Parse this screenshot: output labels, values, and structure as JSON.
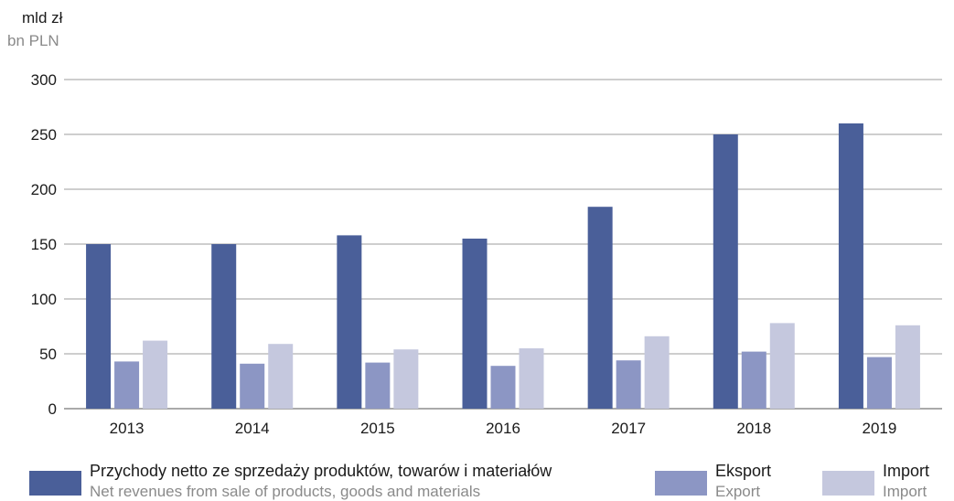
{
  "unit": {
    "pl": "mld zł",
    "en": "bn PLN"
  },
  "colors": {
    "grid": "#9e9e9e",
    "axis": "#555555"
  },
  "legend": [
    {
      "pl": "Przychody netto ze sprzedaży produktów, towarów i materiałów",
      "en": "Net revenues from sale of products, goods and materials",
      "color": "#4a5f99"
    },
    {
      "pl": "Eksport",
      "en": "Export",
      "color": "#8c96c4"
    },
    {
      "pl": "Import",
      "en": "Import",
      "color": "#c5c8de"
    }
  ],
  "chart_data": {
    "type": "bar",
    "categories": [
      "2013",
      "2014",
      "2015",
      "2016",
      "2017",
      "2018",
      "2019"
    ],
    "series": [
      {
        "name": "Przychody netto ze sprzedaży produktów, towarów i materiałów",
        "values": [
          150,
          150,
          158,
          155,
          184,
          250,
          260
        ]
      },
      {
        "name": "Eksport",
        "values": [
          43,
          41,
          42,
          39,
          44,
          52,
          47
        ]
      },
      {
        "name": "Import",
        "values": [
          62,
          59,
          54,
          55,
          66,
          78,
          76
        ]
      }
    ],
    "ylim": [
      0,
      300
    ],
    "yticks": [
      0,
      50,
      100,
      150,
      200,
      250,
      300
    ],
    "grid": true,
    "legend_position": "bottom"
  }
}
